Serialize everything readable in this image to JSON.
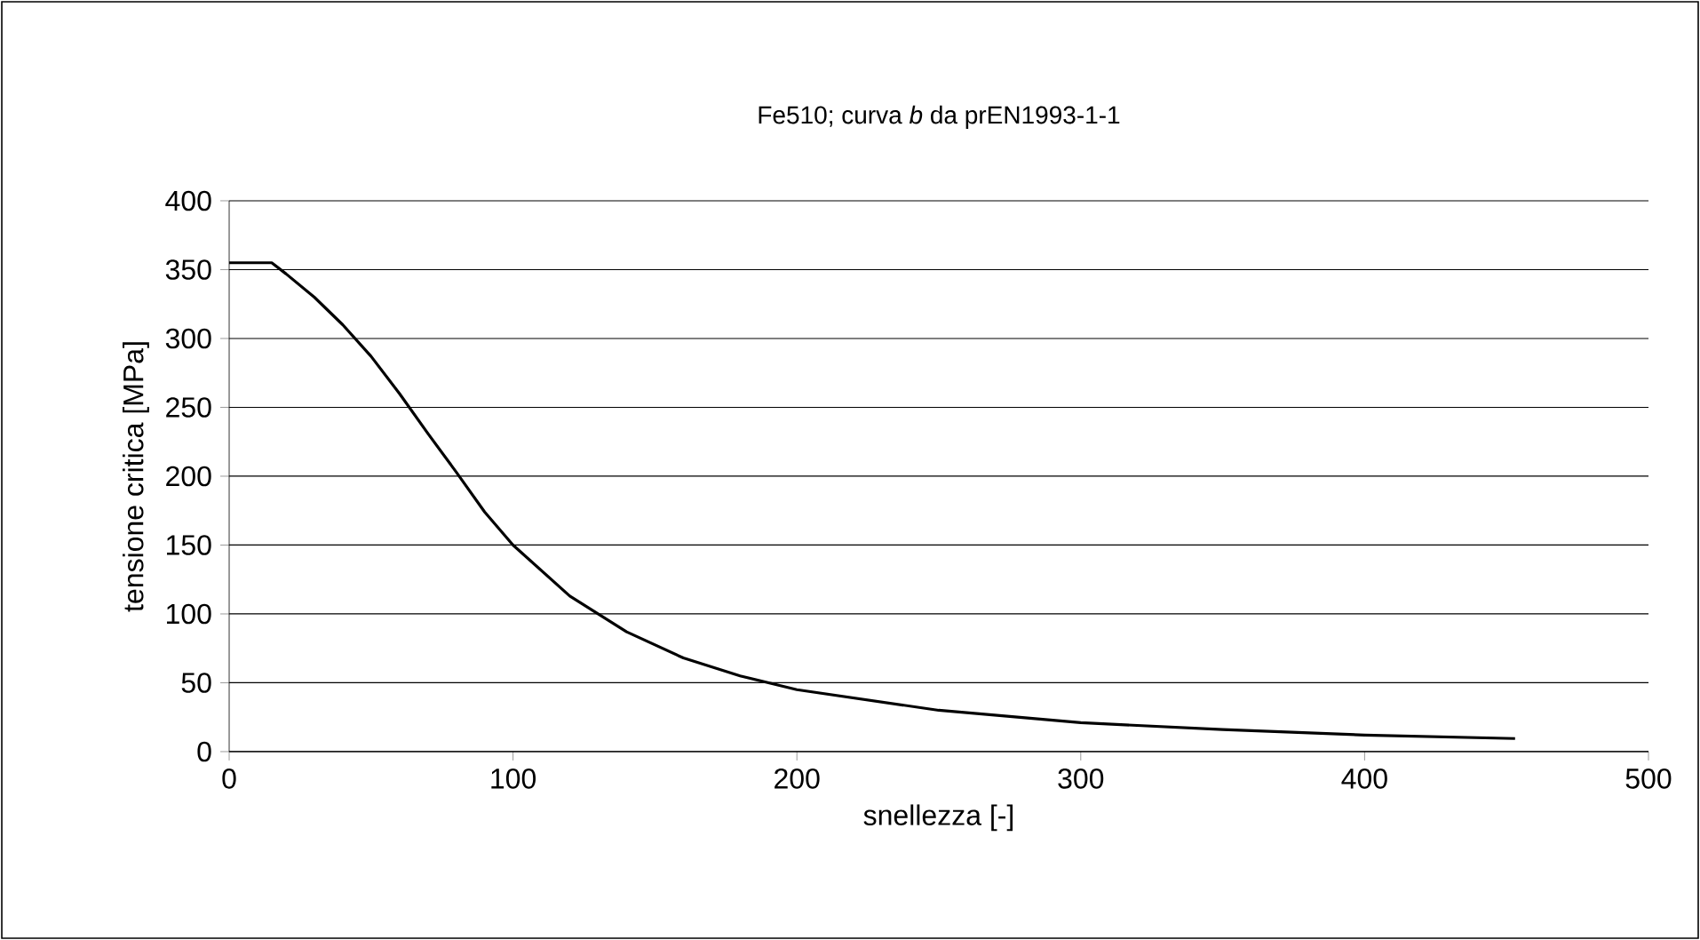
{
  "chart_data": {
    "type": "line",
    "title": "Fe510; curva *b*  da prEN1993-1-1",
    "xlabel": "snellezza [-]",
    "ylabel": "tensione critica [MPa]",
    "x": [
      0,
      15,
      20,
      30,
      40,
      50,
      60,
      70,
      80,
      90,
      100,
      120,
      140,
      160,
      180,
      200,
      250,
      300,
      350,
      400,
      453
    ],
    "series": [
      {
        "color": "#000000",
        "values": [
          355,
          355,
          347,
          330,
          310,
          287,
          260,
          231,
          203,
          174,
          150,
          113,
          87,
          68,
          55,
          45,
          30,
          21,
          16,
          12,
          9.5
        ]
      }
    ],
    "xlim": [
      0,
      500
    ],
    "ylim": [
      0,
      400
    ],
    "xticks": [
      0,
      100,
      200,
      300,
      400,
      500
    ],
    "yticks": [
      0,
      50,
      100,
      150,
      200,
      250,
      300,
      350,
      400
    ],
    "grid": "y",
    "marker": "none",
    "line_style": "solid",
    "legend": false
  }
}
